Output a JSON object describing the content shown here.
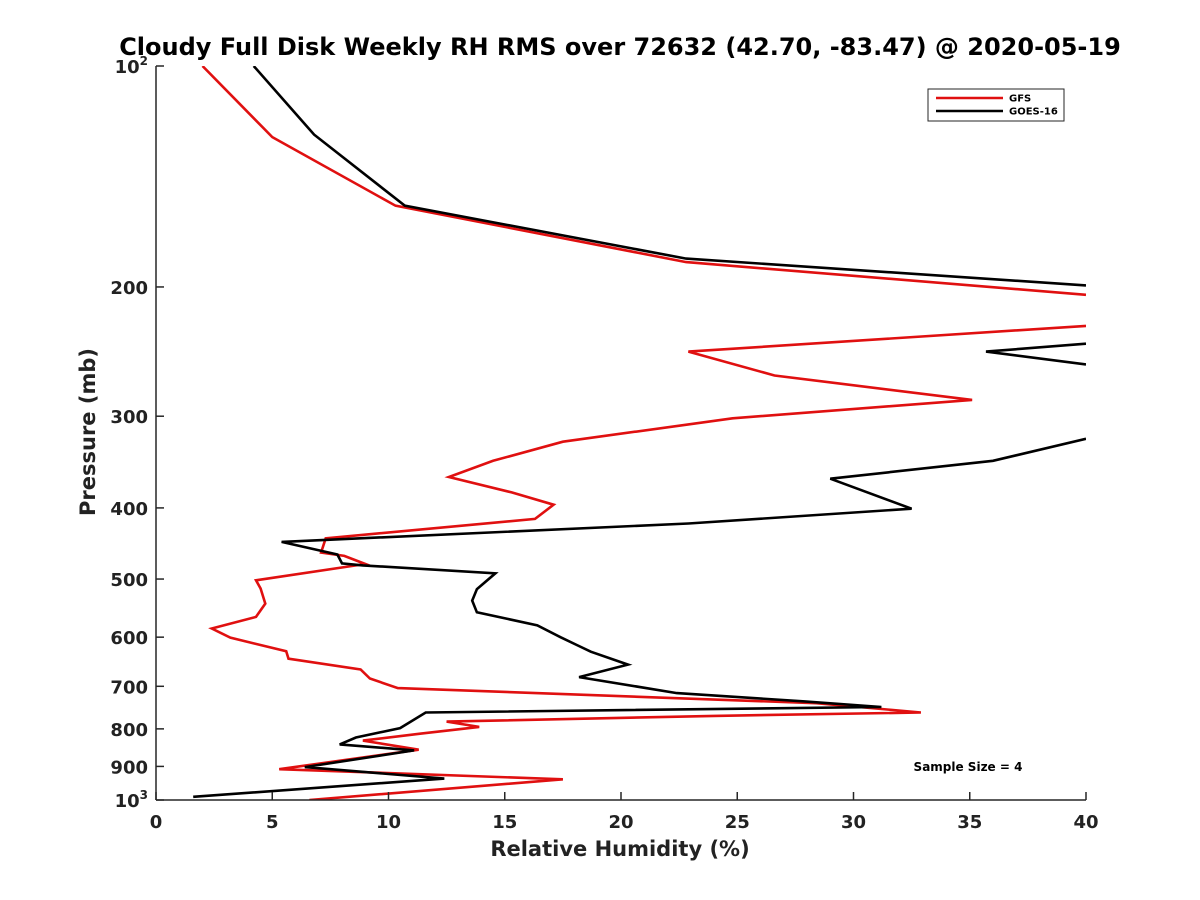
{
  "chart_data": {
    "type": "line",
    "title": "Cloudy Full Disk Weekly RH RMS over 72632 (42.70, -83.47) @ 2020-05-19",
    "xlabel": "Relative Humidity (%)",
    "ylabel": "Pressure (mb)",
    "xlim": [
      0,
      40
    ],
    "ylim": [
      100,
      1000
    ],
    "y_scale": "log",
    "y_reversed": true,
    "grid": false,
    "legend_position": "top-right",
    "x_ticks": [
      "0",
      "5",
      "10",
      "15",
      "20",
      "25",
      "30",
      "35",
      "40"
    ],
    "y_ticks": [
      {
        "value": 100,
        "base": "10",
        "exp": "2"
      },
      {
        "value": 200,
        "label": "200"
      },
      {
        "value": 300,
        "label": "300"
      },
      {
        "value": 400,
        "label": "400"
      },
      {
        "value": 500,
        "label": "500"
      },
      {
        "value": 600,
        "label": "600"
      },
      {
        "value": 700,
        "label": "700"
      },
      {
        "value": 800,
        "label": "800"
      },
      {
        "value": 900,
        "label": "900"
      },
      {
        "value": 1000,
        "base": "10",
        "exp": "3"
      }
    ],
    "annotation": "Sample Size = 4",
    "series": [
      {
        "name": "GFS",
        "color": "#e01010",
        "points": [
          [
            2.0,
            100
          ],
          [
            5.0,
            125
          ],
          [
            10.3,
            155
          ],
          [
            22.8,
            185
          ],
          [
            40,
            205
          ],
          null,
          [
            40,
            226
          ],
          [
            22.9,
            245
          ],
          [
            26.6,
            264
          ],
          [
            35.1,
            285
          ],
          [
            24.8,
            302
          ],
          [
            17.5,
            325
          ],
          [
            14.5,
            345
          ],
          [
            12.6,
            363
          ],
          [
            15.3,
            381
          ],
          [
            17.1,
            396
          ],
          [
            16.3,
            414
          ],
          [
            7.3,
            440
          ],
          [
            7.1,
            460
          ],
          [
            8.1,
            465
          ],
          [
            9.0,
            477
          ],
          [
            4.3,
            502
          ],
          [
            4.5,
            515
          ],
          [
            4.7,
            540
          ],
          [
            4.3,
            563
          ],
          [
            2.4,
            584
          ],
          [
            3.2,
            601
          ],
          [
            5.6,
            627
          ],
          [
            5.7,
            642
          ],
          [
            8.8,
            664
          ],
          [
            9.2,
            683
          ],
          [
            10.4,
            704
          ],
          [
            28.4,
            738
          ],
          [
            32.9,
            760
          ],
          [
            24.0,
            768
          ],
          [
            12.5,
            782
          ],
          [
            13.9,
            795
          ],
          [
            11.4,
            812
          ],
          [
            8.9,
            830
          ],
          [
            11.3,
            854
          ],
          [
            5.3,
            908
          ],
          [
            17.5,
            937
          ],
          [
            6.6,
            1000
          ]
        ]
      },
      {
        "name": "GOES-16",
        "color": "#000000",
        "points": [
          [
            4.2,
            100
          ],
          [
            6.8,
            124
          ],
          [
            10.7,
            155
          ],
          [
            22.8,
            183
          ],
          [
            40,
            199
          ],
          null,
          [
            40,
            239
          ],
          [
            35.7,
            245
          ],
          [
            40,
            255
          ],
          null,
          [
            40,
            322
          ],
          [
            36.0,
            345
          ],
          [
            29.0,
            365
          ],
          [
            32.5,
            401
          ],
          [
            22.9,
            420
          ],
          [
            5.4,
            445
          ],
          [
            7.8,
            463
          ],
          [
            8.0,
            476
          ],
          [
            8.9,
            479
          ],
          [
            14.6,
            491
          ],
          [
            13.8,
            516
          ],
          [
            13.6,
            535
          ],
          [
            13.8,
            555
          ],
          [
            16.4,
            578
          ],
          [
            17.4,
            600
          ],
          [
            18.1,
            615
          ],
          [
            18.7,
            628
          ],
          [
            20.3,
            654
          ],
          [
            18.2,
            680
          ],
          [
            22.4,
            715
          ],
          [
            27.9,
            734
          ],
          [
            31.2,
            747
          ],
          [
            11.6,
            760
          ],
          [
            10.5,
            798
          ],
          [
            8.6,
            822
          ],
          [
            7.9,
            840
          ],
          [
            11.1,
            856
          ],
          [
            6.4,
            902
          ],
          [
            12.4,
            935
          ],
          [
            1.6,
            990
          ]
        ]
      }
    ]
  }
}
